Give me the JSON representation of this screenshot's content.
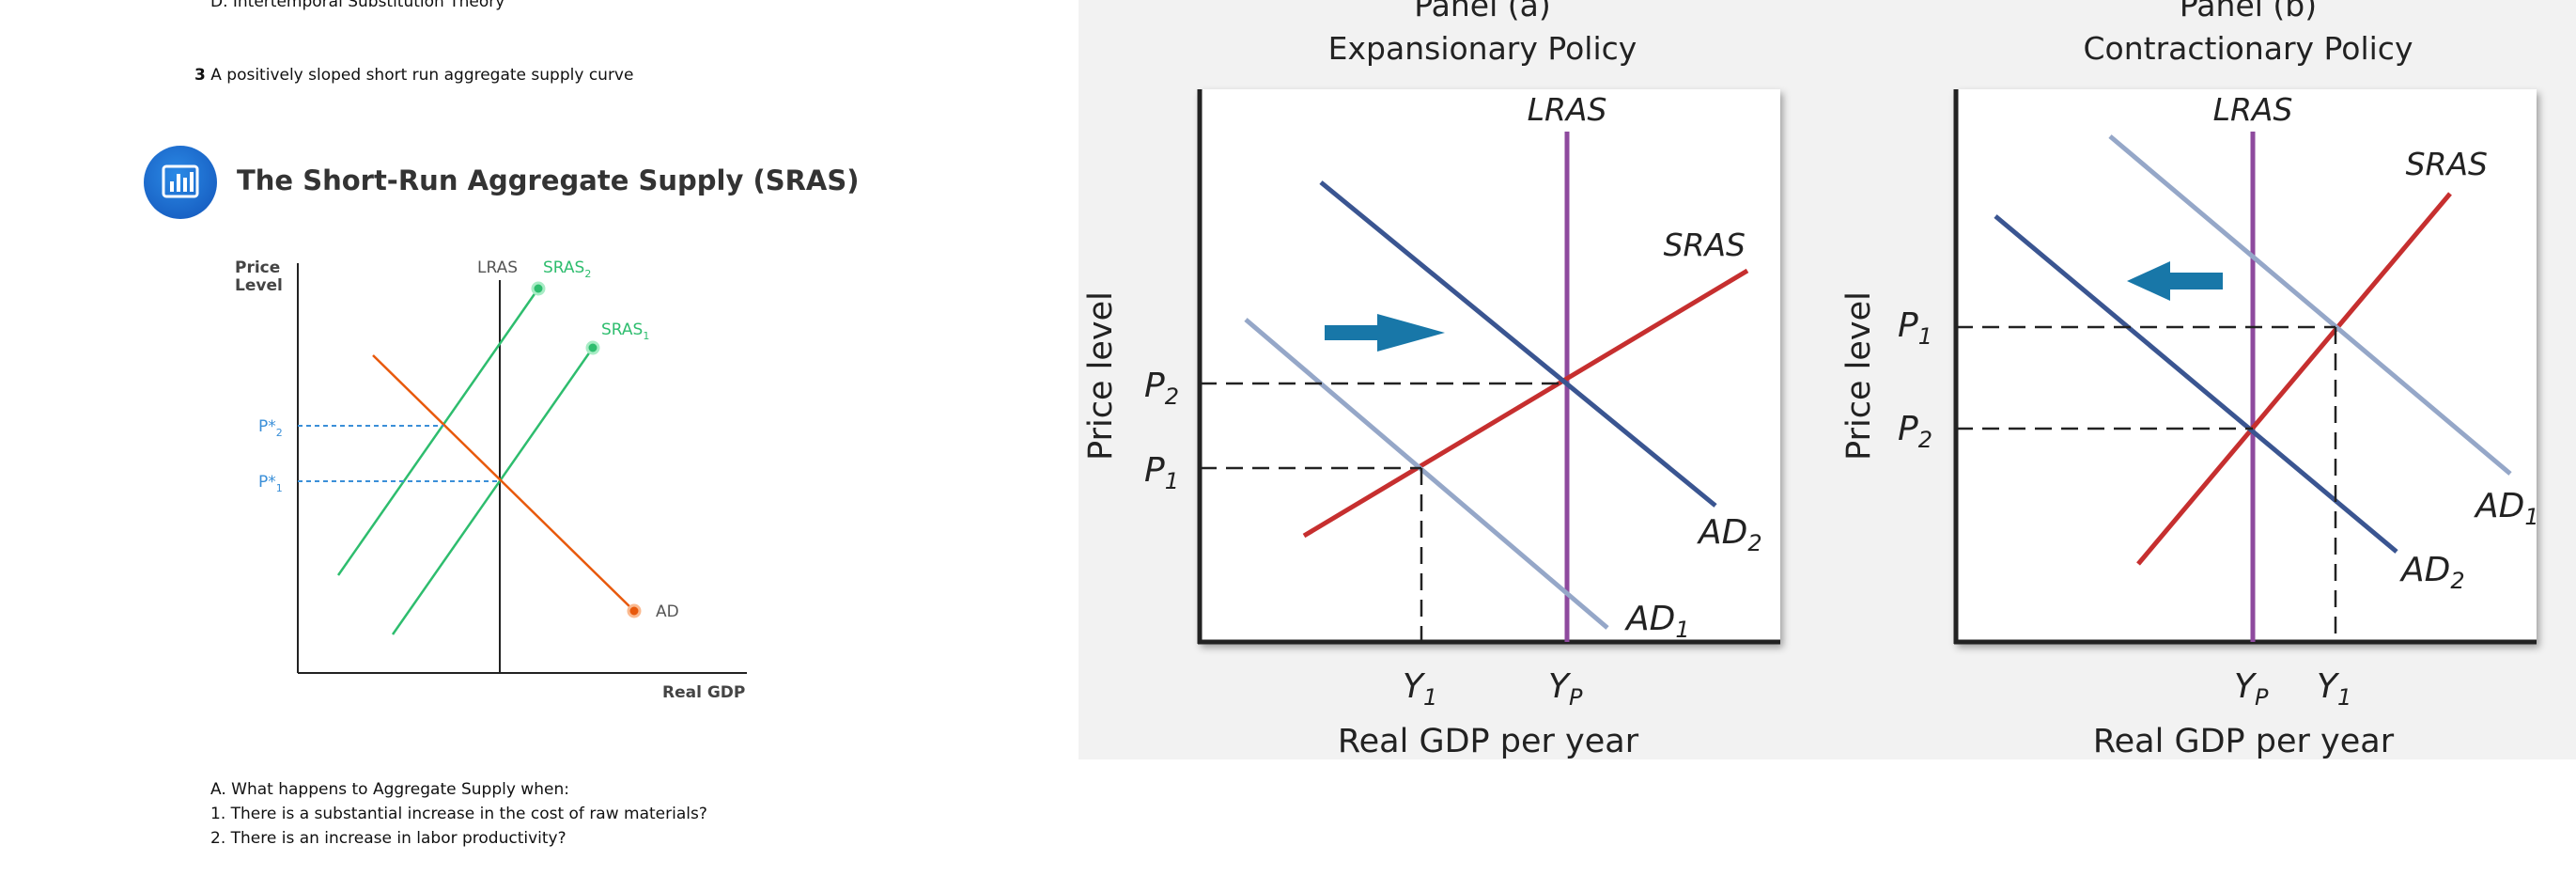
{
  "doc": {
    "option_d": "D.  Intertemporal Substitution Theory",
    "q3_number": "3",
    "q3_text": "A positively sloped short run aggregate supply curve",
    "questions_heading": "A.  What happens to Aggregate Supply when:",
    "question_1": "1.  There is a substantial increase in the cost of raw materials?",
    "question_2": "2.  There is an increase in labor productivity?"
  },
  "sras_card": {
    "title": "The Short-Run Aggregate Supply (SRAS)",
    "icon": "bar-chart-icon",
    "icon_color": "#1565c0"
  },
  "chart_data": [
    {
      "type": "line",
      "title": "The Short-Run Aggregate Supply (SRAS)",
      "ylabel": "Price Level",
      "xlabel": "Real GDP",
      "price_ticks": [
        {
          "label": "P*",
          "sub": "2"
        },
        {
          "label": "P*",
          "sub": "1"
        }
      ],
      "series": [
        {
          "name": "LRAS",
          "kind": "vertical",
          "color": "#222222"
        },
        {
          "name": "SRAS",
          "sub": "2",
          "color": "#2ebd6e"
        },
        {
          "name": "SRAS",
          "sub": "1",
          "color": "#2ebd6e"
        },
        {
          "name": "AD",
          "color": "#e8590c"
        }
      ]
    },
    {
      "type": "line",
      "title": "Panel (a)",
      "subtitle": "Expansionary Policy",
      "ylabel": "Price level",
      "xlabel": "Real GDP per year",
      "y_ticks": [
        {
          "label": "P",
          "sub": "2"
        },
        {
          "label": "P",
          "sub": "1"
        }
      ],
      "x_ticks": [
        {
          "label": "Y",
          "sub": "1"
        },
        {
          "label": "Y",
          "sub": "P"
        }
      ],
      "series": [
        {
          "name": "LRAS",
          "color": "#8e4a9e"
        },
        {
          "name": "SRAS",
          "color": "#c62f2f"
        },
        {
          "name": "AD",
          "sub": "2",
          "color": "#3a5591"
        },
        {
          "name": "AD",
          "sub": "1",
          "color": "#95a7c8"
        }
      ],
      "shift_arrow": "right"
    },
    {
      "type": "line",
      "title": "Panel (b)",
      "subtitle": "Contractionary Policy",
      "ylabel": "Price level",
      "xlabel": "Real GDP per year",
      "y_ticks": [
        {
          "label": "P",
          "sub": "1"
        },
        {
          "label": "P",
          "sub": "2"
        }
      ],
      "x_ticks": [
        {
          "label": "Y",
          "sub": "P"
        },
        {
          "label": "Y",
          "sub": "1"
        }
      ],
      "series": [
        {
          "name": "LRAS",
          "color": "#8e4a9e"
        },
        {
          "name": "SRAS",
          "color": "#c62f2f"
        },
        {
          "name": "AD",
          "sub": "1",
          "color": "#95a7c8"
        },
        {
          "name": "AD",
          "sub": "2",
          "color": "#3a5591"
        }
      ],
      "shift_arrow": "left"
    }
  ]
}
